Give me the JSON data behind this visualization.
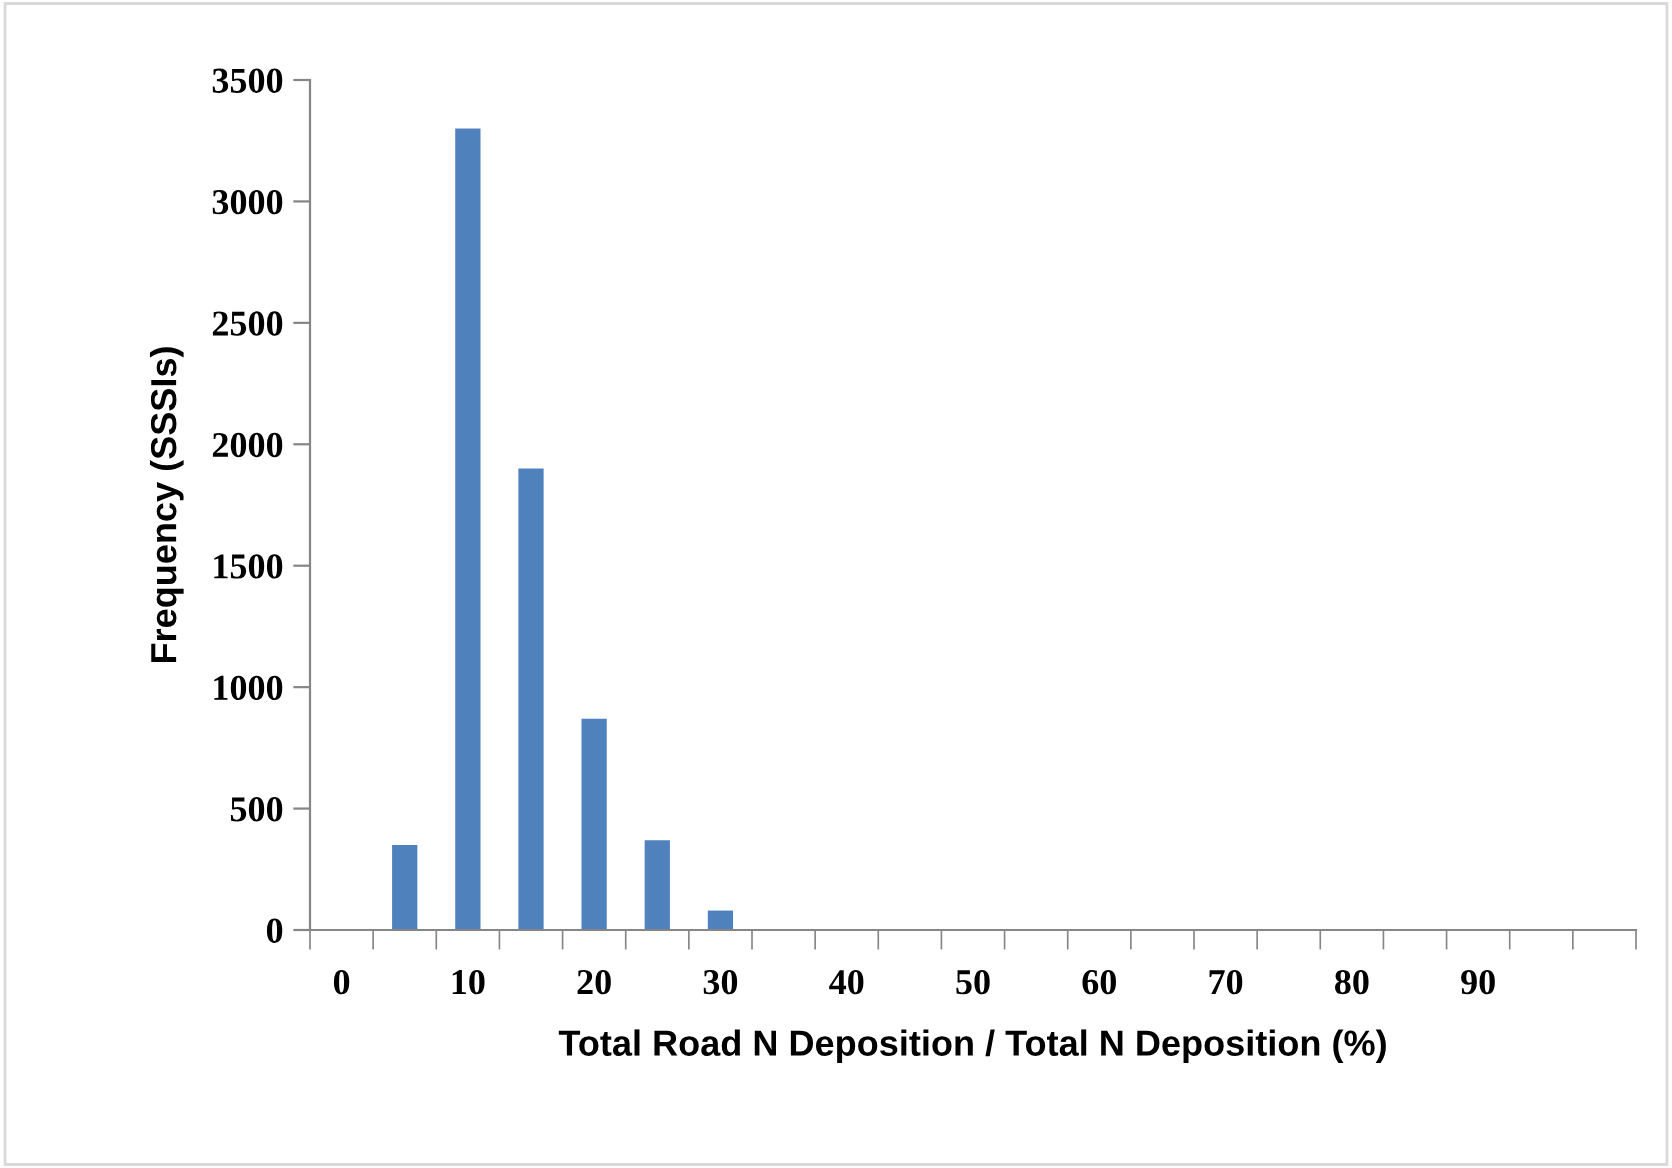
{
  "chart_data": {
    "type": "bar",
    "xlabel": "Total Road N Deposition / Total N Deposition (%)",
    "ylabel": "Frequency (SSSIs)",
    "categories": [
      "0",
      null,
      "10",
      null,
      "20",
      null,
      "30",
      null,
      "40",
      null,
      "50",
      null,
      "60",
      null,
      "70",
      null,
      "80",
      null,
      "90",
      null,
      null
    ],
    "series": [
      {
        "color": "#4f81bd",
        "values": [
          0,
          350,
          3300,
          1900,
          870,
          370,
          80,
          0,
          0,
          0,
          0,
          0,
          0,
          0,
          0,
          0,
          0,
          0,
          0,
          0,
          0
        ]
      }
    ],
    "ylim": [
      0,
      3500
    ],
    "yticks": [
      0,
      500,
      1000,
      1500,
      2000,
      2500,
      3000,
      3500
    ],
    "grid": false,
    "legend": false
  }
}
